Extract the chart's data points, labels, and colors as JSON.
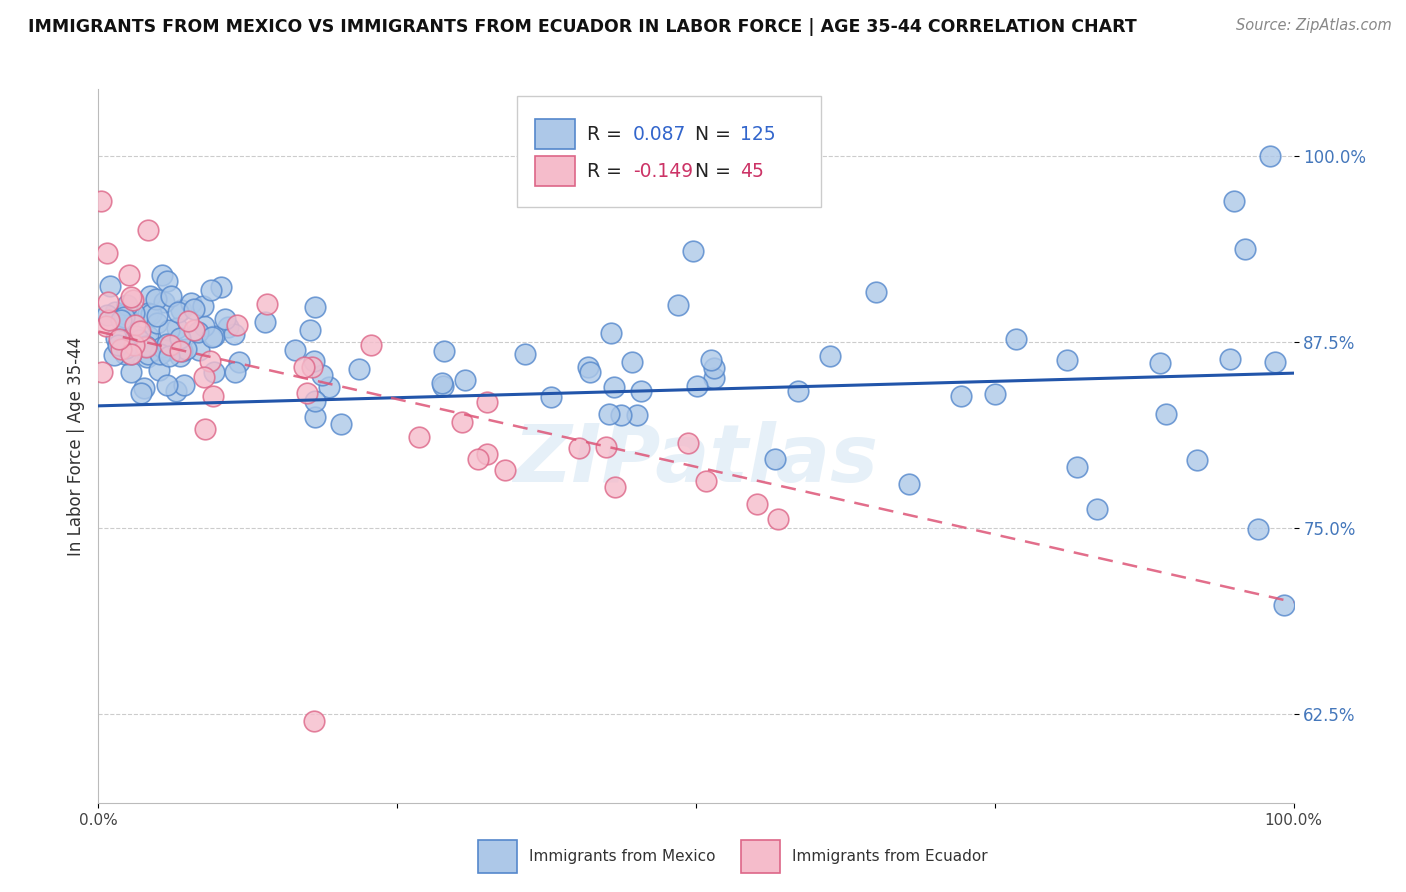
{
  "title": "IMMIGRANTS FROM MEXICO VS IMMIGRANTS FROM ECUADOR IN LABOR FORCE | AGE 35-44 CORRELATION CHART",
  "source_text": "Source: ZipAtlas.com",
  "ylabel": "In Labor Force | Age 35-44",
  "xlim": [
    0.0,
    1.0
  ],
  "ylim": [
    0.565,
    1.045
  ],
  "yticks": [
    0.625,
    0.75,
    0.875,
    1.0
  ],
  "ytick_labels": [
    "62.5%",
    "75.0%",
    "87.5%",
    "100.0%"
  ],
  "mexico_color": "#adc8e8",
  "mexico_edge_color": "#5588cc",
  "ecuador_color": "#f5bccb",
  "ecuador_edge_color": "#dd6688",
  "mexico_R": 0.087,
  "mexico_N": 125,
  "ecuador_R": -0.149,
  "ecuador_N": 45,
  "trend_mexico_color": "#2255aa",
  "trend_ecuador_color": "#dd5577",
  "tick_label_color": "#4477bb",
  "watermark": "ZIPatlas",
  "legend_label_mexico": "Immigrants from Mexico",
  "legend_label_ecuador": "Immigrants from Ecuador",
  "mexico_trend_start_y": 0.832,
  "mexico_trend_end_y": 0.854,
  "ecuador_trend_start_y": 0.882,
  "ecuador_trend_end_y": 0.7
}
